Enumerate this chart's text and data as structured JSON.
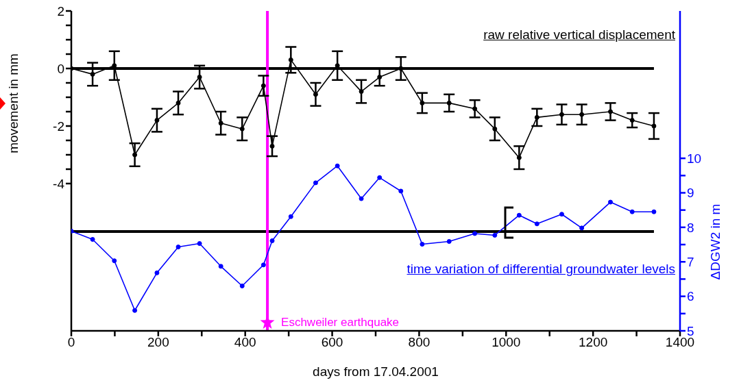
{
  "chart_data": {
    "type": "line",
    "xlabel": "days from 17.04.2001",
    "ylabel": "movement in mm",
    "y2label": "ΔDGW2 in m",
    "annotations": [
      "raw relative vertical displacement",
      "time variation of differential groundwater levels"
    ],
    "x": [
      0,
      49,
      99,
      146,
      197,
      246,
      295,
      344,
      393,
      442,
      462,
      505,
      562,
      612,
      667,
      709,
      758,
      807,
      869,
      928,
      974,
      1030,
      1071,
      1128,
      1174,
      1240,
      1290,
      1340
    ],
    "series": [
      {
        "color": "#000000",
        "axis": "y",
        "values": [
          0,
          -0.2,
          0.1,
          -3.0,
          -1.8,
          -1.2,
          -0.3,
          -1.9,
          -2.1,
          -0.6,
          -2.7,
          0.3,
          -0.9,
          0.1,
          -0.8,
          -0.3,
          0,
          -1.2,
          -1.2,
          -1.4,
          -2.1,
          -3.1,
          -1.7,
          -1.6,
          -1.6,
          -1.5,
          -1.8,
          -2.0
        ],
        "errors": [
          null,
          0.4,
          0.5,
          0.4,
          0.4,
          0.4,
          0.4,
          0.4,
          0.4,
          0.35,
          0.35,
          0.45,
          0.4,
          0.5,
          0.4,
          0.3,
          0.4,
          0.35,
          0.3,
          0.3,
          0.4,
          0.4,
          0.3,
          0.35,
          0.35,
          0.3,
          0.25,
          0.45
        ]
      },
      {
        "color": "#0000ff",
        "axis": "y2",
        "values": [
          7.89,
          7.65,
          7.03,
          5.59,
          6.68,
          7.43,
          7.53,
          6.87,
          6.3,
          6.91,
          7.61,
          8.31,
          9.29,
          9.78,
          8.83,
          9.44,
          9.05,
          7.51,
          7.59,
          7.82,
          7.77,
          8.35,
          8.1,
          8.38,
          7.98,
          8.73,
          8.45,
          8.45
        ]
      }
    ],
    "xlim": [
      0,
      1400
    ],
    "xticks": [
      0,
      {
        "value": 100,
        "label": null
      },
      200,
      {
        "value": 300,
        "label": null
      },
      400,
      {
        "value": 500,
        "label": null
      },
      600,
      {
        "value": 700,
        "label": null
      },
      800,
      {
        "value": 900,
        "label": null
      },
      1000,
      {
        "value": 1100,
        "label": null
      },
      1200,
      {
        "value": 1300,
        "label": null
      },
      1400
    ],
    "ylim": [
      -9.12,
      2
    ],
    "yticks": [
      -4,
      {
        "value": -3.5,
        "label": null
      },
      {
        "value": -3,
        "label": null
      },
      {
        "value": -2.5,
        "label": null
      },
      -2,
      {
        "value": -1.5,
        "label": null
      },
      {
        "value": -1,
        "label": null
      },
      {
        "value": -0.5,
        "label": null
      },
      0,
      {
        "value": 0.5,
        "label": null
      },
      {
        "value": 1,
        "label": null
      },
      {
        "value": 1.5,
        "label": null
      },
      2
    ],
    "y2lim": [
      5,
      14.27
    ],
    "y2ticks": [
      5,
      {
        "value": 5.5,
        "label": null
      },
      6,
      {
        "value": 6.5,
        "label": null
      },
      7,
      {
        "value": 7.5,
        "label": null
      },
      8,
      {
        "value": 8.5,
        "label": null
      },
      9,
      {
        "value": 9.5,
        "label": null
      },
      10
    ],
    "ref_lines": [
      {
        "axis": "y",
        "value": 0,
        "color": "#000000"
      },
      {
        "axis": "y2",
        "value": 7.88,
        "color": "#000000"
      },
      {
        "axis": "x",
        "value": 451,
        "label": "Eschweiler earthquake",
        "color": "#ff00ff"
      }
    ],
    "marker": "circle",
    "line_style": "solid"
  }
}
